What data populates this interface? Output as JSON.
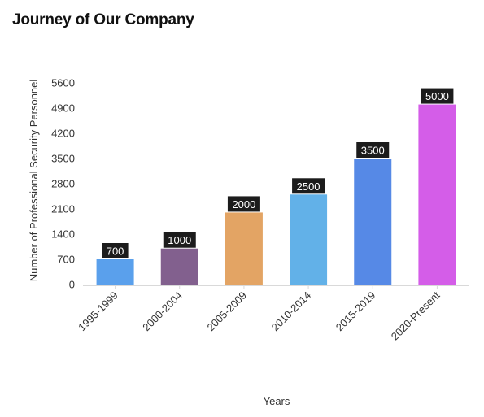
{
  "title": "Journey of Our Company",
  "chart_data": {
    "type": "bar",
    "categories": [
      "1995-1999",
      "2000-2004",
      "2005-2009",
      "2010-2014",
      "2015-2019",
      "2020-Present"
    ],
    "values": [
      700,
      1000,
      2000,
      2500,
      3500,
      5000
    ],
    "colors": [
      "#5aa0ec",
      "#82608e",
      "#e3a464",
      "#62b1e8",
      "#5689e6",
      "#d45de8"
    ],
    "xlabel": "Years",
    "ylabel": "Number of Professional Security Personnel",
    "ylim": [
      0,
      5600
    ],
    "yticks": [
      "0",
      "700",
      "1400",
      "2100",
      "2800",
      "3500",
      "4200",
      "4900",
      "5600"
    ],
    "grid": false,
    "data_labels": [
      "700",
      "1000",
      "2000",
      "2500",
      "3500",
      "5000"
    ]
  }
}
